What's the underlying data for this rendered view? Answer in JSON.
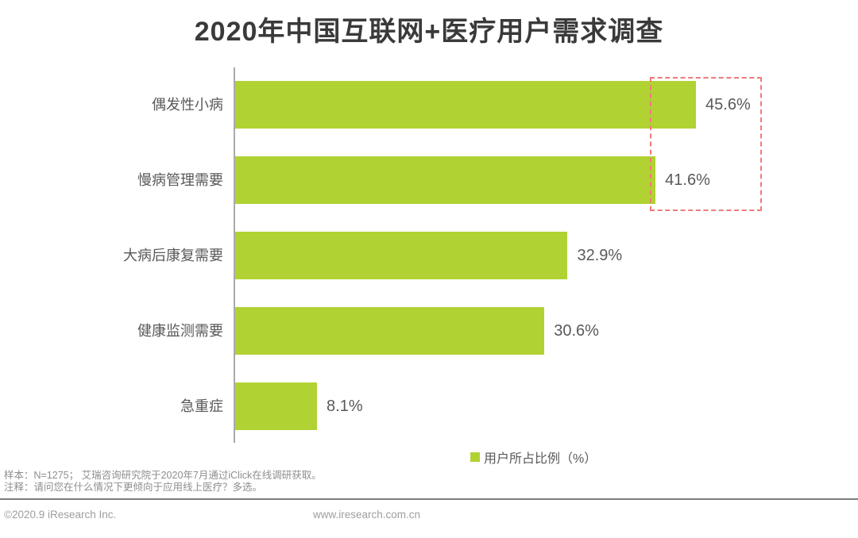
{
  "title": "2020年中国互联网+医疗用户需求调查",
  "legend": {
    "label": "用户所占比例（%）"
  },
  "notes": {
    "sample": "样本：N=1275； 艾瑞咨询研究院于2020年7月通过iClick在线调研获取。",
    "annotation": "注释：请问您在什么情况下更倾向于应用线上医疗？多选。"
  },
  "footer": {
    "copyright": "©2020.9 iResearch Inc.",
    "website": "www.iresearch.com.cn"
  },
  "colors": {
    "bar": "#b1d233",
    "highlight_border": "#ef7b7b",
    "title_text": "#3a3a3a",
    "label_text": "#595959",
    "note_text": "#8e8e8e",
    "axis_line": "#a9a9a9"
  },
  "chart_data": {
    "type": "bar",
    "orientation": "horizontal",
    "title": "2020年中国互联网+医疗用户需求调查",
    "categories": [
      "偶发性小病",
      "慢病管理需要",
      "大病后康复需要",
      "健康监测需要",
      "急重症"
    ],
    "values": [
      45.6,
      41.6,
      32.9,
      30.6,
      8.1
    ],
    "value_labels": [
      "45.6%",
      "41.6%",
      "32.9%",
      "30.6%",
      "8.1%"
    ],
    "unit": "%",
    "xlabel": "",
    "ylabel": "",
    "xlim": [
      0,
      50
    ],
    "grid": false,
    "legend_entries": [
      "用户所占比例（%）"
    ],
    "legend_position": "bottom",
    "highlighted_categories": [
      "偶发性小病",
      "慢病管理需要"
    ],
    "highlight_style": "dashed-red-box"
  }
}
